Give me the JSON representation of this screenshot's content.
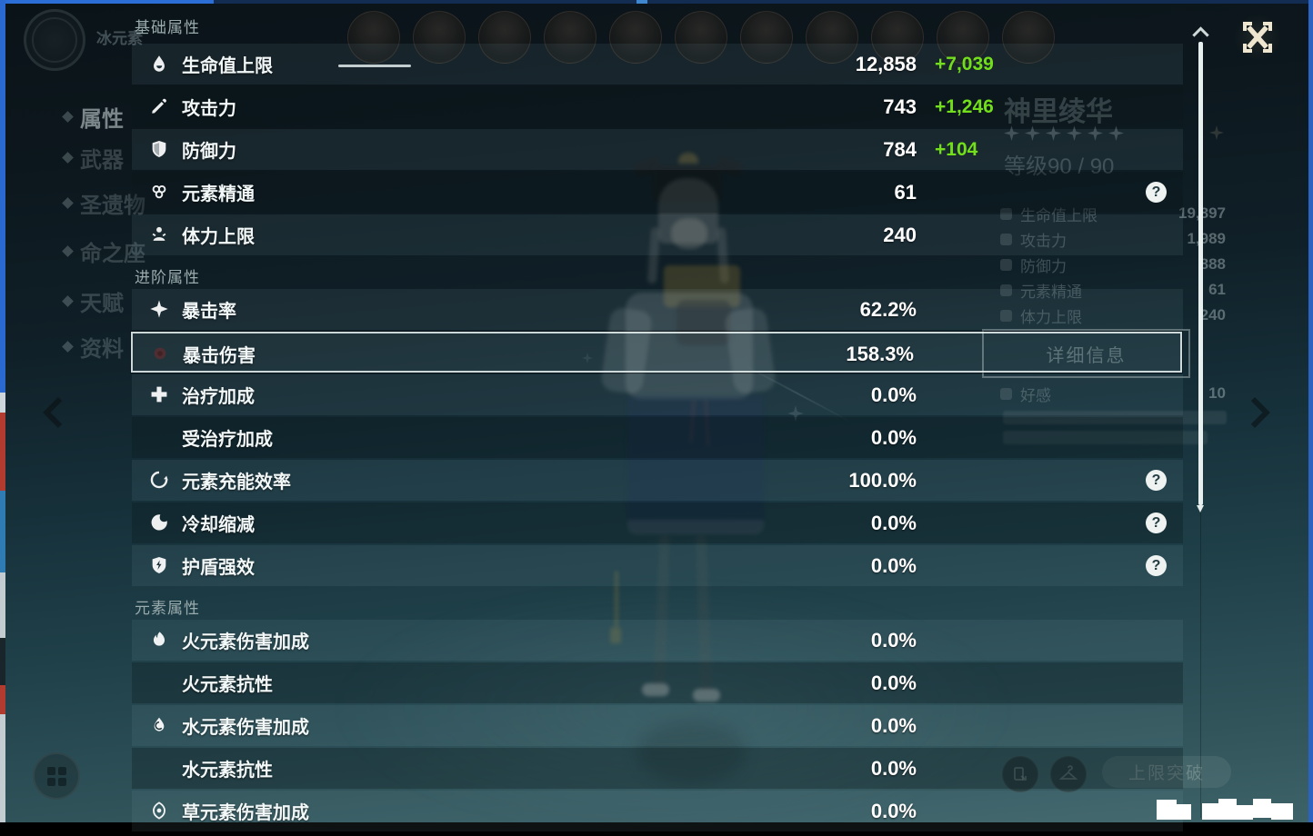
{
  "overlay": {
    "help_glyph": "?",
    "sections": [
      {
        "title": "基础属性",
        "rows": [
          {
            "label": "生命值上限",
            "icon": "hp-droplet",
            "value": "12,858",
            "bonus": "+7,039"
          },
          {
            "label": "攻击力",
            "icon": "atk-sword",
            "value": "743",
            "bonus": "+1,246"
          },
          {
            "label": "防御力",
            "icon": "def-shield",
            "value": "784",
            "bonus": "+104"
          },
          {
            "label": "元素精通",
            "icon": "elemental-mastery",
            "value": "61",
            "help": true
          },
          {
            "label": "体力上限",
            "icon": "stamina",
            "value": "240"
          }
        ]
      },
      {
        "title": "进阶属性",
        "rows": [
          {
            "label": "暴击率",
            "icon": "crit-rate",
            "value": "62.2%"
          },
          {
            "label": "暴击伤害",
            "icon": "crit-dmg",
            "value": "158.3%",
            "selected": true
          },
          {
            "label": "治疗加成",
            "icon": "healing-bonus",
            "value": "0.0%"
          },
          {
            "label": "受治疗加成",
            "icon": "none",
            "value": "0.0%"
          },
          {
            "label": "元素充能效率",
            "icon": "energy-recharge",
            "value": "100.0%",
            "help": true
          },
          {
            "label": "冷却缩减",
            "icon": "cd-reduction",
            "value": "0.0%",
            "help": true
          },
          {
            "label": "护盾强效",
            "icon": "shield-strength",
            "value": "0.0%",
            "help": true
          }
        ]
      },
      {
        "title": "元素属性",
        "rows": [
          {
            "label": "火元素伤害加成",
            "icon": "pyro",
            "value": "0.0%"
          },
          {
            "label": "火元素抗性",
            "icon": "none",
            "value": "0.0%"
          },
          {
            "label": "水元素伤害加成",
            "icon": "hydro",
            "value": "0.0%"
          },
          {
            "label": "水元素抗性",
            "icon": "none",
            "value": "0.0%"
          },
          {
            "label": "草元素伤害加成",
            "icon": "dendro",
            "value": "0.0%"
          }
        ]
      }
    ]
  },
  "background": {
    "element_label": "冰元素",
    "menu_items": [
      "属性",
      "武器",
      "圣遗物",
      "命之座",
      "天赋",
      "资料"
    ],
    "character": {
      "name": "神里绫华",
      "star_count": 6,
      "level_text": "等级90 / 90"
    },
    "stats": [
      {
        "label": "生命值上限",
        "value": "19,897"
      },
      {
        "label": "攻击力",
        "value": "1,989"
      },
      {
        "label": "防御力",
        "value": "888"
      },
      {
        "label": "元素精通",
        "value": "61"
      },
      {
        "label": "体力上限",
        "value": "240"
      }
    ],
    "details_button_label": "详细信息",
    "friendship": {
      "label": "好感",
      "value": "10"
    },
    "ascend_button_label": "上限突破"
  },
  "colors": {
    "bonus_green": "#72df1a",
    "panel_select_border": "rgba(235,245,245,0.85)",
    "scrollbar": "#e7eeee",
    "close_icon": "#efe6d0",
    "edge_blue": "#2a6ad0"
  }
}
